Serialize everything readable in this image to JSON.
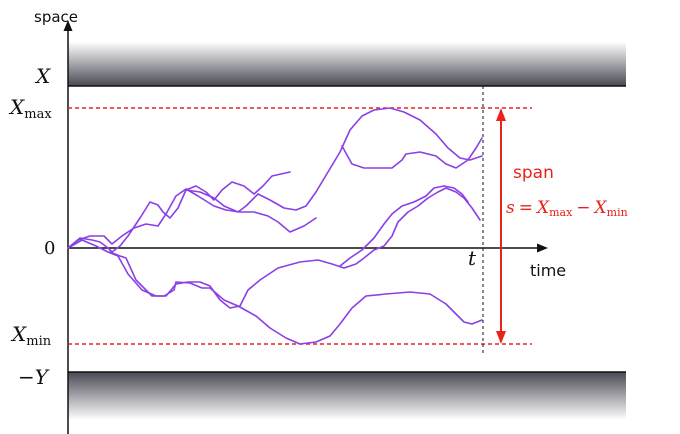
{
  "axes": {
    "y_label": "space",
    "x_label": "time",
    "origin_label": "0",
    "upper_boundary_label": "X",
    "lower_boundary_label": "−Y",
    "t_label": "t"
  },
  "levels": {
    "xmax_var": "X",
    "xmax_sub": "max",
    "xmin_var": "X",
    "xmin_sub": "min"
  },
  "span": {
    "label": "span",
    "eq_s": "s",
    "eq_equals": "=",
    "eq_var1": "X",
    "eq_sub1": "max",
    "eq_minus": "−",
    "eq_var2": "X",
    "eq_sub2": "min"
  },
  "colors": {
    "path": "#8b3fe6",
    "span": "#e8231b",
    "boundary_dark": "#4a4a56",
    "boundary_light": "#ffffff",
    "axis": "#111111"
  }
}
